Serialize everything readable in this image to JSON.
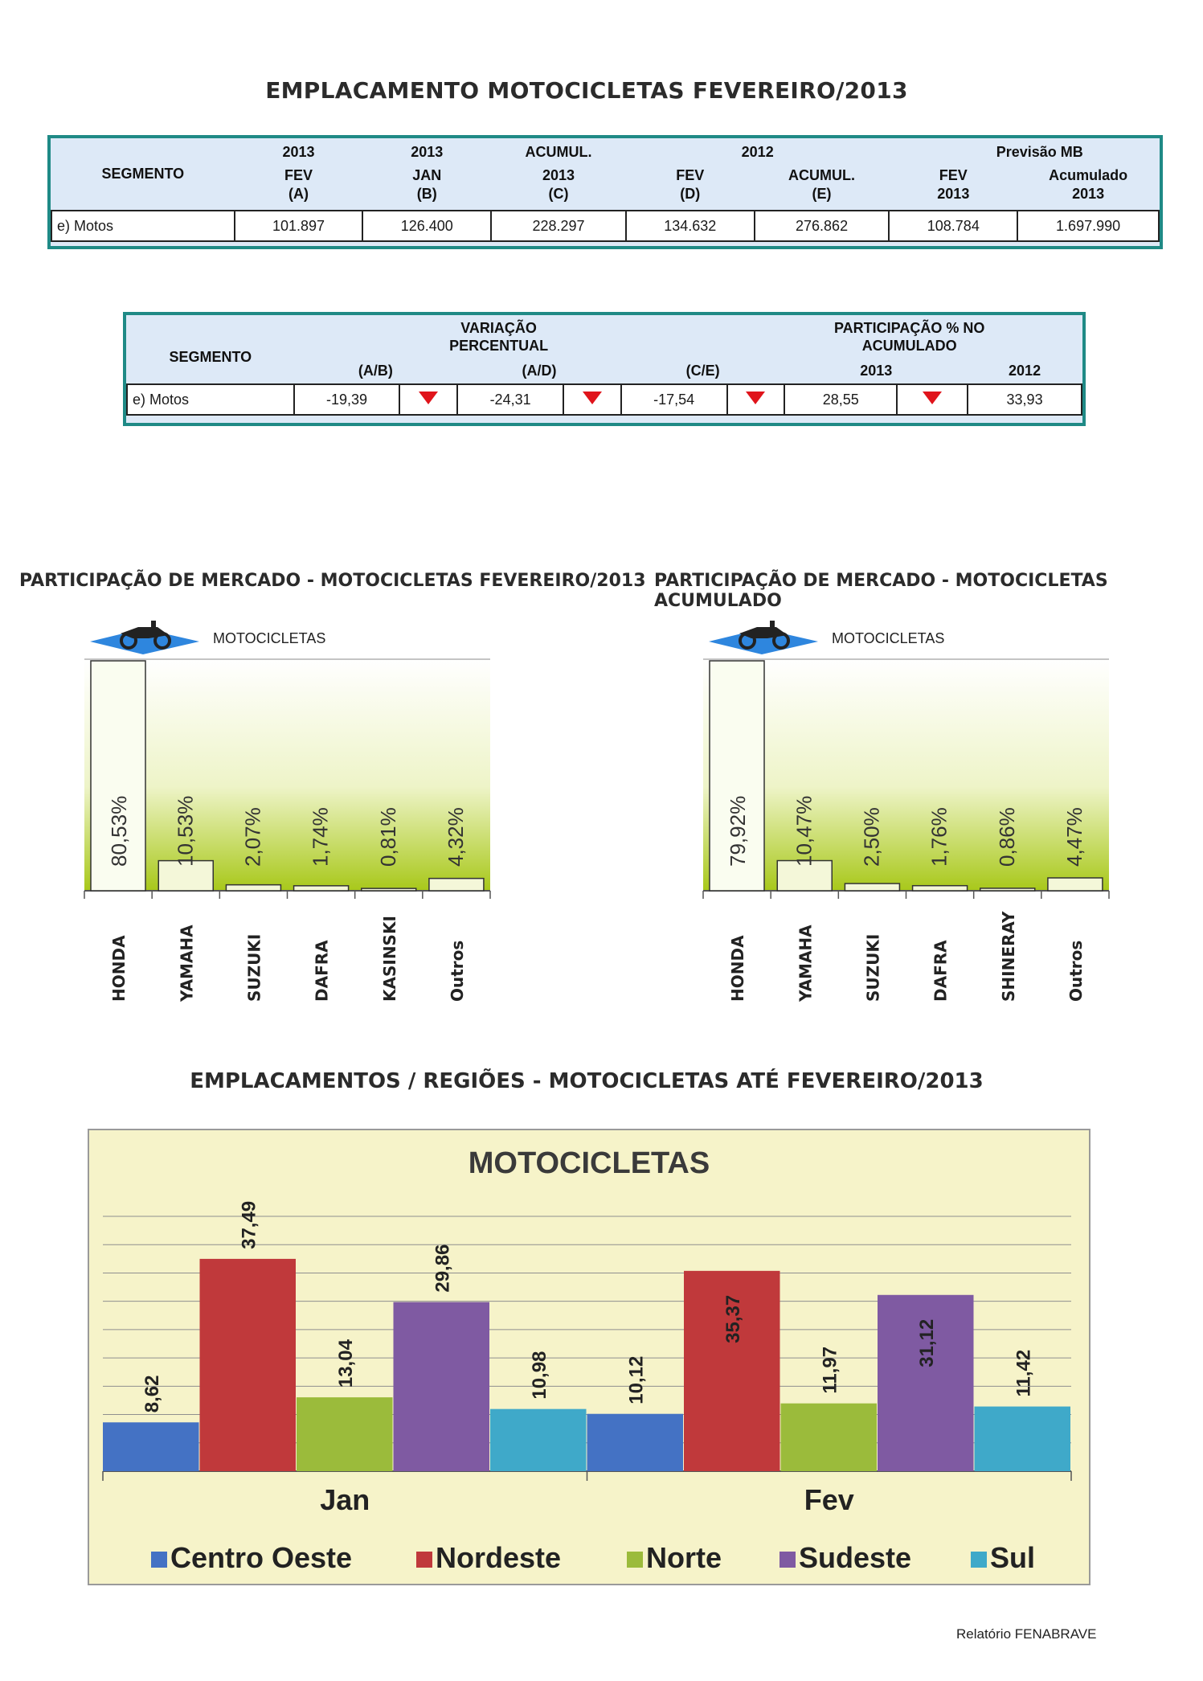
{
  "title": "EMPLACAMENTO MOTOCICLETAS FEVEREIRO/2013",
  "table1": {
    "segment_header": "SEGMENTO",
    "cols": [
      {
        "top": "2013",
        "mid": "FEV",
        "bot": "(A)"
      },
      {
        "top": "2013",
        "mid": "JAN",
        "bot": "(B)"
      },
      {
        "top": "ACUMUL.",
        "mid": "2013",
        "bot": "(C)"
      },
      {
        "top": "",
        "mid": "FEV",
        "bot": "(D)"
      },
      {
        "top": "",
        "mid": "ACUMUL.",
        "bot": "(E)"
      },
      {
        "top": "",
        "mid": "FEV",
        "bot": "2013"
      },
      {
        "top": "",
        "mid": "Acumulado",
        "bot": "2013"
      }
    ],
    "group_2012": "2012",
    "group_previsao": "Previsão MB",
    "row": {
      "label": "e) Motos",
      "values": [
        "101.897",
        "126.400",
        "228.297",
        "134.632",
        "276.862",
        "108.784",
        "1.697.990"
      ]
    }
  },
  "table2": {
    "segment_header": "SEGMENTO",
    "variacao_header": "VARIAÇÃO PERCENTUAL",
    "participacao_header": "PARTICIPAÇÃO % NO ACUMULADO",
    "cols": [
      "(A/B)",
      "(A/D)",
      "(C/E)",
      "2013",
      "2012"
    ],
    "row": {
      "label": "e) Motos",
      "values": [
        "-19,39",
        "-24,31",
        "-17,54",
        "28,55",
        "33,93"
      ]
    },
    "indicator_color": "#e0141b"
  },
  "share_fev": {
    "title": "PARTICIPAÇÃO DE MERCADO - MOTOCICLETAS FEVEREIRO/2013",
    "legend": "MOTOCICLETAS",
    "icon": "motorcycle-icon"
  },
  "share_acum": {
    "title": "PARTICIPAÇÃO DE MERCADO - MOTOCICLETAS ACUMULADO",
    "legend": "MOTOCICLETAS",
    "icon": "motorcycle-icon"
  },
  "regions_title": "EMPLACAMENTOS / REGIÕES - MOTOCICLETAS ATÉ FEVEREIRO/2013",
  "footer": "Relatório FENABRAVE",
  "chart_data": [
    {
      "type": "bar",
      "categories": [
        "HONDA",
        "YAMAHA",
        "SUZUKI",
        "DAFRA",
        "KASINSKI",
        "Outros"
      ],
      "values": [
        80.53,
        10.53,
        2.07,
        1.74,
        0.81,
        4.32
      ],
      "labels": [
        "80,53%",
        "10,53%",
        "2,07%",
        "1,74%",
        "0,81%",
        "4,32%"
      ],
      "ylim": [
        0,
        80.53
      ]
    },
    {
      "type": "bar",
      "categories": [
        "HONDA",
        "YAMAHA",
        "SUZUKI",
        "DAFRA",
        "SHINERAY",
        "Outros"
      ],
      "values": [
        79.92,
        10.47,
        2.5,
        1.76,
        0.86,
        4.47
      ],
      "labels": [
        "79,92%",
        "10,47%",
        "2,50%",
        "1,76%",
        "0,86%",
        "4,47%"
      ],
      "ylim": [
        0,
        79.92
      ]
    },
    {
      "type": "bar",
      "title": "MOTOCICLETAS",
      "categories": [
        "Jan",
        "Fev"
      ],
      "series": [
        {
          "name": "Centro Oeste",
          "values": [
            8.62,
            10.12
          ],
          "labels": [
            "8,62",
            "10,12"
          ],
          "color": "#4472c4"
        },
        {
          "name": "Nordeste",
          "values": [
            37.49,
            35.37
          ],
          "labels": [
            "37,49",
            "35,37"
          ],
          "color": "#c0393b"
        },
        {
          "name": "Norte",
          "values": [
            13.04,
            11.97
          ],
          "labels": [
            "13,04",
            "11,97"
          ],
          "color": "#9bbb3b"
        },
        {
          "name": "Sudeste",
          "values": [
            29.86,
            31.12
          ],
          "labels": [
            "29,86",
            "31,12"
          ],
          "color": "#7f5aa2"
        },
        {
          "name": "Sul",
          "values": [
            10.98,
            11.42
          ],
          "labels": [
            "10,98",
            "11,42"
          ],
          "color": "#3fa9c9"
        }
      ],
      "ylim": [
        0,
        45
      ],
      "grid": true,
      "legend": "bottom"
    }
  ]
}
